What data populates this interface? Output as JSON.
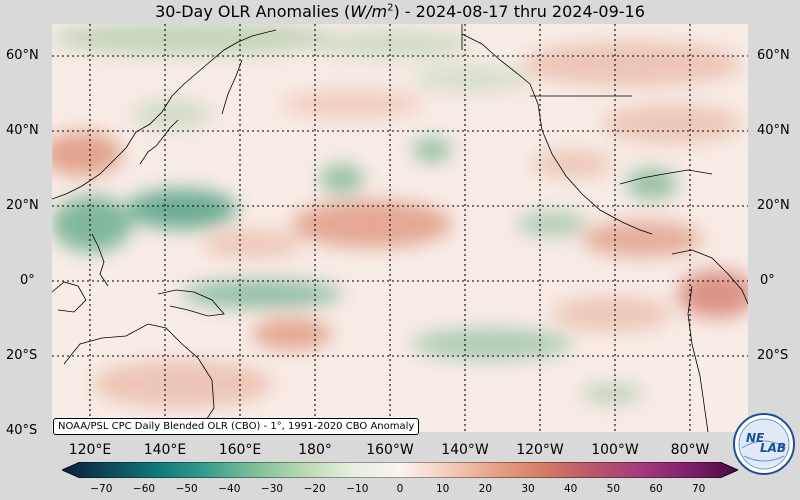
{
  "title": {
    "prefix": "30-Day OLR Anomalies (",
    "unit_base": "W/m",
    "unit_exp": "2",
    "suffix": ") - 2024-08-17 thru 2024-09-16"
  },
  "lat_labels": [
    "60°N",
    "40°N",
    "20°N",
    "0°",
    "20°S",
    "40°S"
  ],
  "lat_labels_right": [
    "60°N",
    "40°N",
    "20°N",
    "0°",
    "20°S"
  ],
  "lon_labels": [
    "120°E",
    "140°E",
    "160°E",
    "180°",
    "160°W",
    "140°W",
    "120°W",
    "100°W",
    "80°W"
  ],
  "credit": "NOAA/PSL CPC Daily Blended OLR (CBO) - 1°, 1991-2020 CBO Anomaly",
  "colorbar": {
    "ticks": [
      "−70",
      "−60",
      "−50",
      "−40",
      "−30",
      "−20",
      "−10",
      "0",
      "10",
      "20",
      "30",
      "40",
      "50",
      "60",
      "70"
    ],
    "range": [
      -75,
      75
    ],
    "colors": [
      "#0b1e3a",
      "#0e4a5e",
      "#0f7a7a",
      "#3a9e8c",
      "#7fbf98",
      "#b9d8b3",
      "#e6efdf",
      "#fbf3ef",
      "#f3cdbd",
      "#e5a184",
      "#d57a63",
      "#b9566b",
      "#a53a7a",
      "#7e1f6c",
      "#4a0a40"
    ]
  },
  "logo": {
    "line1": "NE",
    "line2": "LAB",
    "icon": "noaa-psl-globe-logo"
  }
}
